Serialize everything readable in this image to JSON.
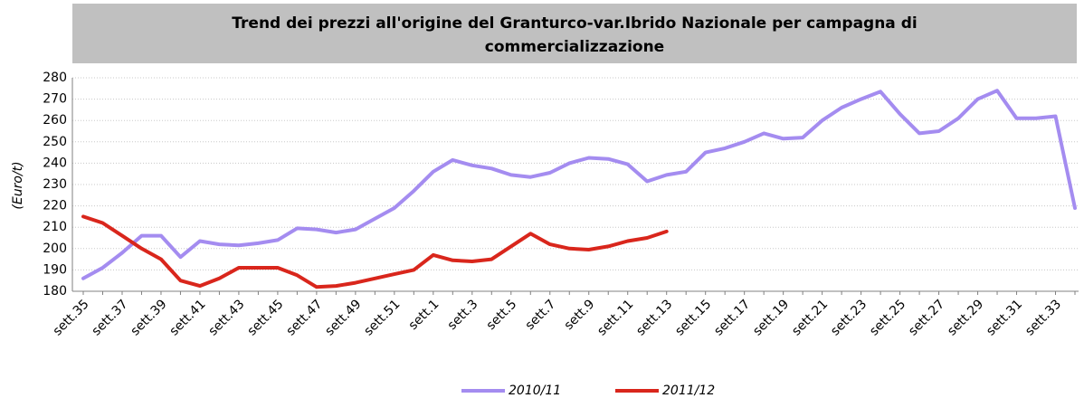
{
  "chart_data": {
    "type": "line",
    "title": [
      "Trend dei prezzi all'origine del Granturco-var.Ibrido Nazionale per campagna di",
      "commercializzazione"
    ],
    "y_label": "(Euro/t)",
    "categories": [
      "sett.35",
      null,
      "sett.37",
      null,
      "sett.39",
      null,
      "sett.41",
      null,
      "sett.43",
      null,
      "sett.45",
      null,
      "sett.47",
      null,
      "sett.49",
      null,
      "sett.51",
      null,
      "sett.1",
      null,
      "sett.3",
      null,
      "sett.5",
      null,
      "sett.7",
      null,
      "sett.9",
      null,
      "sett.11",
      null,
      "sett.13",
      null,
      "sett.15",
      null,
      "sett.17",
      null,
      "sett.19",
      null,
      "sett.21",
      null,
      "sett.23",
      null,
      "sett.25",
      null,
      "sett.27",
      null,
      "sett.29",
      null,
      "sett.31",
      null,
      "sett.33",
      null
    ],
    "series": [
      {
        "name": "2010/11",
        "color": "#a48cf0",
        "values": [
          186,
          191,
          198,
          206,
          206,
          196,
          203.5,
          202,
          201.5,
          202.5,
          204,
          209.5,
          209,
          207.5,
          209,
          214,
          219,
          227,
          236,
          241.5,
          239,
          237.5,
          234.5,
          233.5,
          235.5,
          240,
          242.5,
          242,
          239.5,
          231.5,
          234.5,
          236,
          245,
          247,
          250,
          254,
          251.5,
          252,
          260,
          266,
          270,
          273.5,
          263,
          254,
          255,
          261,
          270,
          274,
          261,
          261,
          262,
          219
        ]
      },
      {
        "name": "2011/12",
        "color": "#d9261c",
        "values": [
          215,
          212,
          206,
          200,
          195,
          185,
          182.5,
          186,
          191,
          191,
          191,
          187.5,
          182,
          182.5,
          184,
          186,
          188,
          190,
          197,
          194.5,
          194,
          195,
          201,
          207,
          202,
          200,
          199.5,
          201,
          203.5,
          205,
          208,
          null,
          null,
          null,
          null,
          null,
          null,
          null,
          null,
          null,
          null,
          null,
          null,
          null,
          null,
          null,
          null,
          null,
          null,
          null,
          null,
          null
        ]
      }
    ],
    "ylim": [
      180,
      280
    ],
    "yticks": [
      180,
      190,
      200,
      210,
      220,
      230,
      240,
      250,
      260,
      270,
      280
    ],
    "grid": true
  }
}
